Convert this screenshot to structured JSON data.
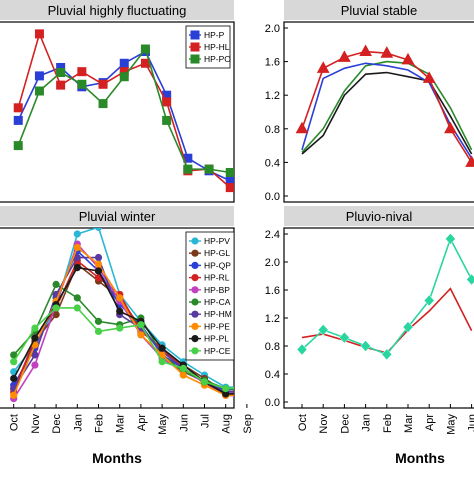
{
  "months": [
    "Oct",
    "Nov",
    "Dec",
    "Jan",
    "Feb",
    "Mar",
    "Apr",
    "May",
    "Jun",
    "Jul",
    "Aug",
    "Sep"
  ],
  "xlabel": "Months",
  "chart_data": [
    {
      "type": "line",
      "title": "Pluvial highly fluctuating",
      "ylim": [
        0,
        2.0
      ],
      "yticks": [],
      "legend_position": "top-right",
      "series": [
        {
          "name": "HP-P",
          "color": "#2a3fd6",
          "values": [
            0.9,
            1.43,
            1.53,
            1.3,
            1.35,
            1.58,
            1.72,
            1.2,
            0.45,
            0.3,
            0.18,
            0.22
          ]
        },
        {
          "name": "HP-HL",
          "color": "#d42020",
          "values": [
            1.05,
            1.93,
            1.32,
            1.48,
            1.33,
            1.48,
            1.58,
            1.12,
            0.3,
            0.32,
            0.1,
            0.18
          ]
        },
        {
          "name": "HP-PO",
          "color": "#2a8a2a",
          "values": [
            0.6,
            1.25,
            1.47,
            1.33,
            1.1,
            1.42,
            1.75,
            0.9,
            0.32,
            0.32,
            0.28,
            0.3
          ]
        }
      ]
    },
    {
      "type": "line",
      "title": "Pluvial stable",
      "ylim": [
        0,
        2.0
      ],
      "yticks": [
        "0.0",
        "0.4",
        "0.8",
        "1.2",
        "1.6",
        "2.0"
      ],
      "series": [
        {
          "name": "",
          "color": "#2a8a2a",
          "marker": "none",
          "values": [
            0.52,
            0.8,
            1.25,
            1.55,
            1.6,
            1.58,
            1.45,
            1.05,
            0.55
          ]
        },
        {
          "name": "",
          "color": "#1a1a1a",
          "marker": "none",
          "values": [
            0.5,
            0.72,
            1.2,
            1.45,
            1.47,
            1.42,
            1.37,
            0.95,
            0.5
          ]
        },
        {
          "name": "",
          "color": "#2a3fd6",
          "marker": "none",
          "values": [
            0.55,
            1.4,
            1.52,
            1.58,
            1.55,
            1.5,
            1.35,
            0.85,
            0.45
          ]
        },
        {
          "name": "",
          "color": "#d42020",
          "marker": "triangle",
          "values": [
            0.8,
            1.52,
            1.65,
            1.72,
            1.7,
            1.62,
            1.4,
            0.8,
            0.4
          ]
        }
      ]
    },
    {
      "type": "line",
      "title": "Pluvial winter",
      "ylim": [
        0,
        2.5
      ],
      "yticks": [],
      "legend_position": "top-right",
      "series": [
        {
          "name": "HP-PV",
          "color": "#2ab6d6",
          "values": [
            0.45,
            0.85,
            1.4,
            2.5,
            2.6,
            1.6,
            1.2,
            0.85,
            0.6,
            0.4,
            0.22,
            0.22
          ]
        },
        {
          "name": "HP-GL",
          "color": "#7a3a1a",
          "values": [
            0.2,
            0.9,
            1.3,
            2.05,
            1.8,
            1.55,
            1.1,
            0.75,
            0.55,
            0.35,
            0.15,
            0.17
          ]
        },
        {
          "name": "HP-QP",
          "color": "#2a3fd6",
          "values": [
            0.25,
            0.8,
            1.55,
            2.25,
            1.95,
            1.45,
            1.15,
            0.7,
            0.5,
            0.3,
            0.18,
            0.2
          ]
        },
        {
          "name": "HP-RL",
          "color": "#d42020",
          "values": [
            0.15,
            0.95,
            1.4,
            2.1,
            1.85,
            1.6,
            1.05,
            0.8,
            0.5,
            0.28,
            0.12,
            0.14
          ]
        },
        {
          "name": "HP-BP",
          "color": "#c040c0",
          "values": [
            0.05,
            0.55,
            1.45,
            2.35,
            2.0,
            1.5,
            1.0,
            0.65,
            0.45,
            0.3,
            0.1,
            0.08
          ]
        },
        {
          "name": "HP-CA",
          "color": "#2a8a2a",
          "values": [
            0.7,
            1.05,
            1.75,
            1.55,
            1.2,
            1.15,
            1.25,
            0.7,
            0.45,
            0.32,
            0.2,
            0.18
          ]
        },
        {
          "name": "HP-HM",
          "color": "#5a3aa0",
          "values": [
            0.2,
            0.7,
            1.6,
            2.15,
            2.15,
            1.3,
            1.1,
            0.75,
            0.5,
            0.3,
            0.15,
            0.15
          ]
        },
        {
          "name": "HP-PE",
          "color": "#ff8c00",
          "values": [
            0.1,
            0.85,
            1.5,
            2.3,
            2.05,
            1.55,
            1.0,
            0.7,
            0.4,
            0.25,
            0.1,
            0.1
          ]
        },
        {
          "name": "HP-PL",
          "color": "#1a1a1a",
          "values": [
            0.35,
            0.95,
            1.45,
            2.0,
            1.95,
            1.35,
            1.2,
            0.8,
            0.55,
            0.3,
            0.12,
            0.12
          ]
        },
        {
          "name": "HP-CE",
          "color": "#48d048",
          "values": [
            0.6,
            1.1,
            1.4,
            1.4,
            1.05,
            1.1,
            1.15,
            0.6,
            0.5,
            0.3,
            0.2,
            0.22
          ]
        }
      ]
    },
    {
      "type": "line",
      "title": "Pluvio-nival",
      "ylim": [
        0,
        2.4
      ],
      "yticks": [
        "0.0",
        "0.4",
        "0.8",
        "1.2",
        "1.6",
        "2.0",
        "2.4"
      ],
      "series": [
        {
          "name": "",
          "color": "#d42020",
          "marker": "none",
          "values": [
            0.92,
            0.97,
            0.88,
            0.78,
            0.7,
            1.03,
            1.3,
            1.62,
            1.02
          ]
        },
        {
          "name": "",
          "color": "#2ad6a0",
          "marker": "diamond",
          "values": [
            0.75,
            1.03,
            0.92,
            0.8,
            0.68,
            1.07,
            1.45,
            2.33,
            1.75
          ]
        }
      ]
    }
  ]
}
